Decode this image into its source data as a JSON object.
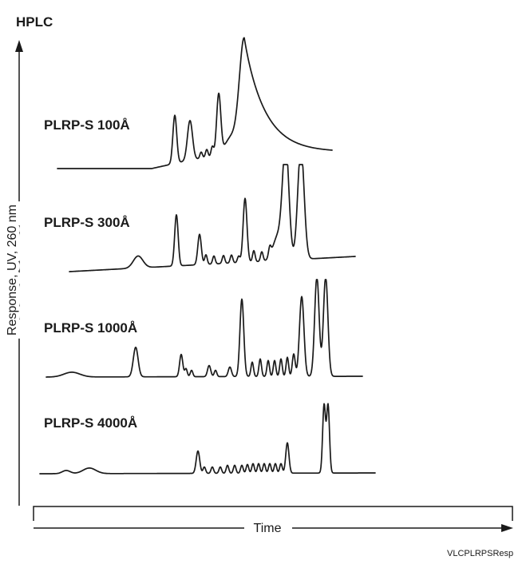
{
  "chart_data": {
    "type": "line",
    "title": "HPLC",
    "ylabel": "Response, UV, 260 nm",
    "xlabel": "Time",
    "series": [
      {
        "name": "PLRP-S 100Å"
      },
      {
        "name": "PLRP-S 300Å"
      },
      {
        "name": "PLRP-S 1000Å"
      },
      {
        "name": "PLRP-S 4000Å"
      }
    ],
    "figure_ref": "VLCPLRPSResp"
  },
  "colors": {
    "ink": "#1a1a1a",
    "background": "#ffffff"
  }
}
